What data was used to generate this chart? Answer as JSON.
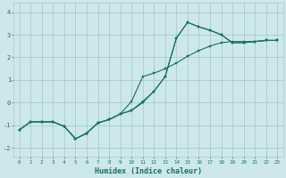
{
  "xlabel": "Humidex (Indice chaleur)",
  "bg_color": "#cce8e8",
  "grid_color": "#aacccc",
  "line_color": "#1a6e6e",
  "xlim": [
    -0.5,
    23.5
  ],
  "ylim": [
    -2.4,
    4.4
  ],
  "xticks": [
    0,
    1,
    2,
    3,
    4,
    5,
    6,
    7,
    8,
    9,
    10,
    11,
    12,
    13,
    14,
    15,
    16,
    17,
    18,
    19,
    20,
    21,
    22,
    23
  ],
  "yticks": [
    -2,
    -1,
    0,
    1,
    2,
    3,
    4
  ],
  "line1_x": [
    0,
    1,
    2,
    3,
    4,
    5,
    6,
    7,
    8,
    9,
    10,
    11,
    12,
    13,
    14,
    15,
    16,
    17,
    18,
    19,
    20,
    21,
    22,
    23
  ],
  "line1_y": [
    -1.2,
    -0.85,
    -0.85,
    -0.85,
    -1.05,
    -1.6,
    -1.35,
    -0.9,
    -0.75,
    -0.5,
    -0.35,
    0.0,
    0.5,
    1.15,
    2.85,
    3.55,
    3.35,
    3.2,
    3.0,
    2.65,
    2.65,
    2.7,
    2.75,
    2.75
  ],
  "line2_x": [
    0,
    1,
    2,
    3,
    4,
    5,
    6,
    7,
    8,
    9,
    10,
    11,
    12,
    13,
    14,
    15,
    16,
    17,
    18,
    19,
    20,
    21,
    22,
    23
  ],
  "line2_y": [
    -1.2,
    -0.85,
    -0.85,
    -0.85,
    -1.05,
    -1.6,
    -1.35,
    -0.9,
    -0.75,
    -0.5,
    0.05,
    1.15,
    1.3,
    1.5,
    1.75,
    2.05,
    2.3,
    2.5,
    2.65,
    2.7,
    2.7,
    2.7,
    2.75,
    2.75
  ],
  "line3_x": [
    0,
    1,
    2,
    3,
    4,
    5,
    6,
    7,
    8,
    9,
    10,
    11,
    12,
    13,
    14,
    15,
    16,
    17,
    18,
    19,
    20,
    21,
    22,
    23
  ],
  "line3_y": [
    -1.2,
    -0.85,
    -0.85,
    -0.85,
    -1.05,
    -1.6,
    -1.35,
    -0.9,
    -0.75,
    -0.5,
    -0.35,
    0.05,
    0.5,
    1.15,
    2.85,
    3.55,
    3.35,
    3.2,
    3.0,
    2.65,
    2.65,
    2.7,
    2.75,
    2.75
  ]
}
